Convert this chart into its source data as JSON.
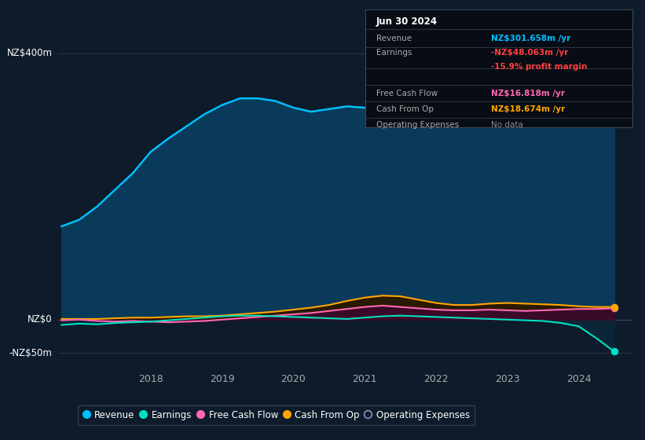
{
  "bg_color": "#0d1b2a",
  "plot_bg_color": "#0d1b2a",
  "info_box_title": "Jun 30 2024",
  "info_rows": [
    {
      "label": "Revenue",
      "value": "NZ$301.658m /yr",
      "value_color": "#00bfff"
    },
    {
      "label": "Earnings",
      "value": "-NZ$48.063m /yr",
      "value_color": "#ff4040"
    },
    {
      "label": "",
      "value": "-15.9% profit margin",
      "value_color": "#ff4040"
    },
    {
      "label": "Free Cash Flow",
      "value": "NZ$16.818m /yr",
      "value_color": "#ff69b4"
    },
    {
      "label": "Cash From Op",
      "value": "NZ$18.674m /yr",
      "value_color": "#ffa500"
    },
    {
      "label": "Operating Expenses",
      "value": "No data",
      "value_color": "#888888"
    }
  ],
  "ylabel_top": "NZ$400m",
  "ylabel_zero": "NZ$0",
  "ylabel_neg": "-NZ$50m",
  "ylim": [
    -75,
    440
  ],
  "xlim": [
    2016.7,
    2024.75
  ],
  "years_x": [
    2016.75,
    2017.0,
    2017.25,
    2017.5,
    2017.75,
    2018.0,
    2018.25,
    2018.5,
    2018.75,
    2019.0,
    2019.25,
    2019.5,
    2019.75,
    2020.0,
    2020.25,
    2020.5,
    2020.75,
    2021.0,
    2021.25,
    2021.5,
    2021.75,
    2022.0,
    2022.25,
    2022.5,
    2022.75,
    2023.0,
    2023.25,
    2023.5,
    2023.75,
    2024.0,
    2024.25,
    2024.5
  ],
  "revenue": [
    140,
    150,
    170,
    195,
    220,
    252,
    272,
    290,
    308,
    322,
    332,
    332,
    328,
    318,
    312,
    316,
    320,
    318,
    322,
    328,
    322,
    312,
    316,
    322,
    338,
    352,
    358,
    354,
    344,
    328,
    308,
    302
  ],
  "earnings": [
    -8,
    -6,
    -7,
    -5,
    -4,
    -3,
    -1,
    1,
    3,
    5,
    6,
    6,
    5,
    4,
    3,
    2,
    1,
    3,
    5,
    6,
    5,
    4,
    3,
    2,
    1,
    0,
    -1,
    -2,
    -5,
    -10,
    -28,
    -48
  ],
  "free_cash_flow": [
    -1,
    0,
    -2,
    -3,
    -2,
    -3,
    -4,
    -3,
    -2,
    0,
    2,
    4,
    6,
    8,
    10,
    13,
    16,
    19,
    21,
    19,
    17,
    15,
    14,
    14,
    15,
    14,
    13,
    14,
    15,
    16,
    16,
    17
  ],
  "cash_from_op": [
    1,
    1,
    1,
    2,
    3,
    3,
    4,
    5,
    5,
    6,
    8,
    10,
    12,
    15,
    18,
    22,
    28,
    33,
    36,
    35,
    30,
    25,
    22,
    22,
    24,
    25,
    24,
    23,
    22,
    20,
    19,
    19
  ],
  "revenue_color": "#00bfff",
  "revenue_fill": "#0a3a5a",
  "earnings_color": "#00e0c0",
  "earnings_fill_pos": "#004040",
  "earnings_fill_neg": "#1a0a1a",
  "fcf_color": "#ff69b4",
  "fcf_fill": "#5a1040",
  "cfop_color": "#ffa500",
  "cfop_fill": "#3a2500",
  "xtick_years": [
    2018,
    2019,
    2020,
    2021,
    2022,
    2023,
    2024
  ],
  "legend_items": [
    {
      "label": "Revenue",
      "color": "#00bfff",
      "marker": "circle_filled"
    },
    {
      "label": "Earnings",
      "color": "#00e0c0",
      "marker": "circle_filled"
    },
    {
      "label": "Free Cash Flow",
      "color": "#ff69b4",
      "marker": "circle_filled"
    },
    {
      "label": "Cash From Op",
      "color": "#ffa500",
      "marker": "circle_filled"
    },
    {
      "label": "Operating Expenses",
      "color": "#9090cc",
      "marker": "circle_empty"
    }
  ]
}
